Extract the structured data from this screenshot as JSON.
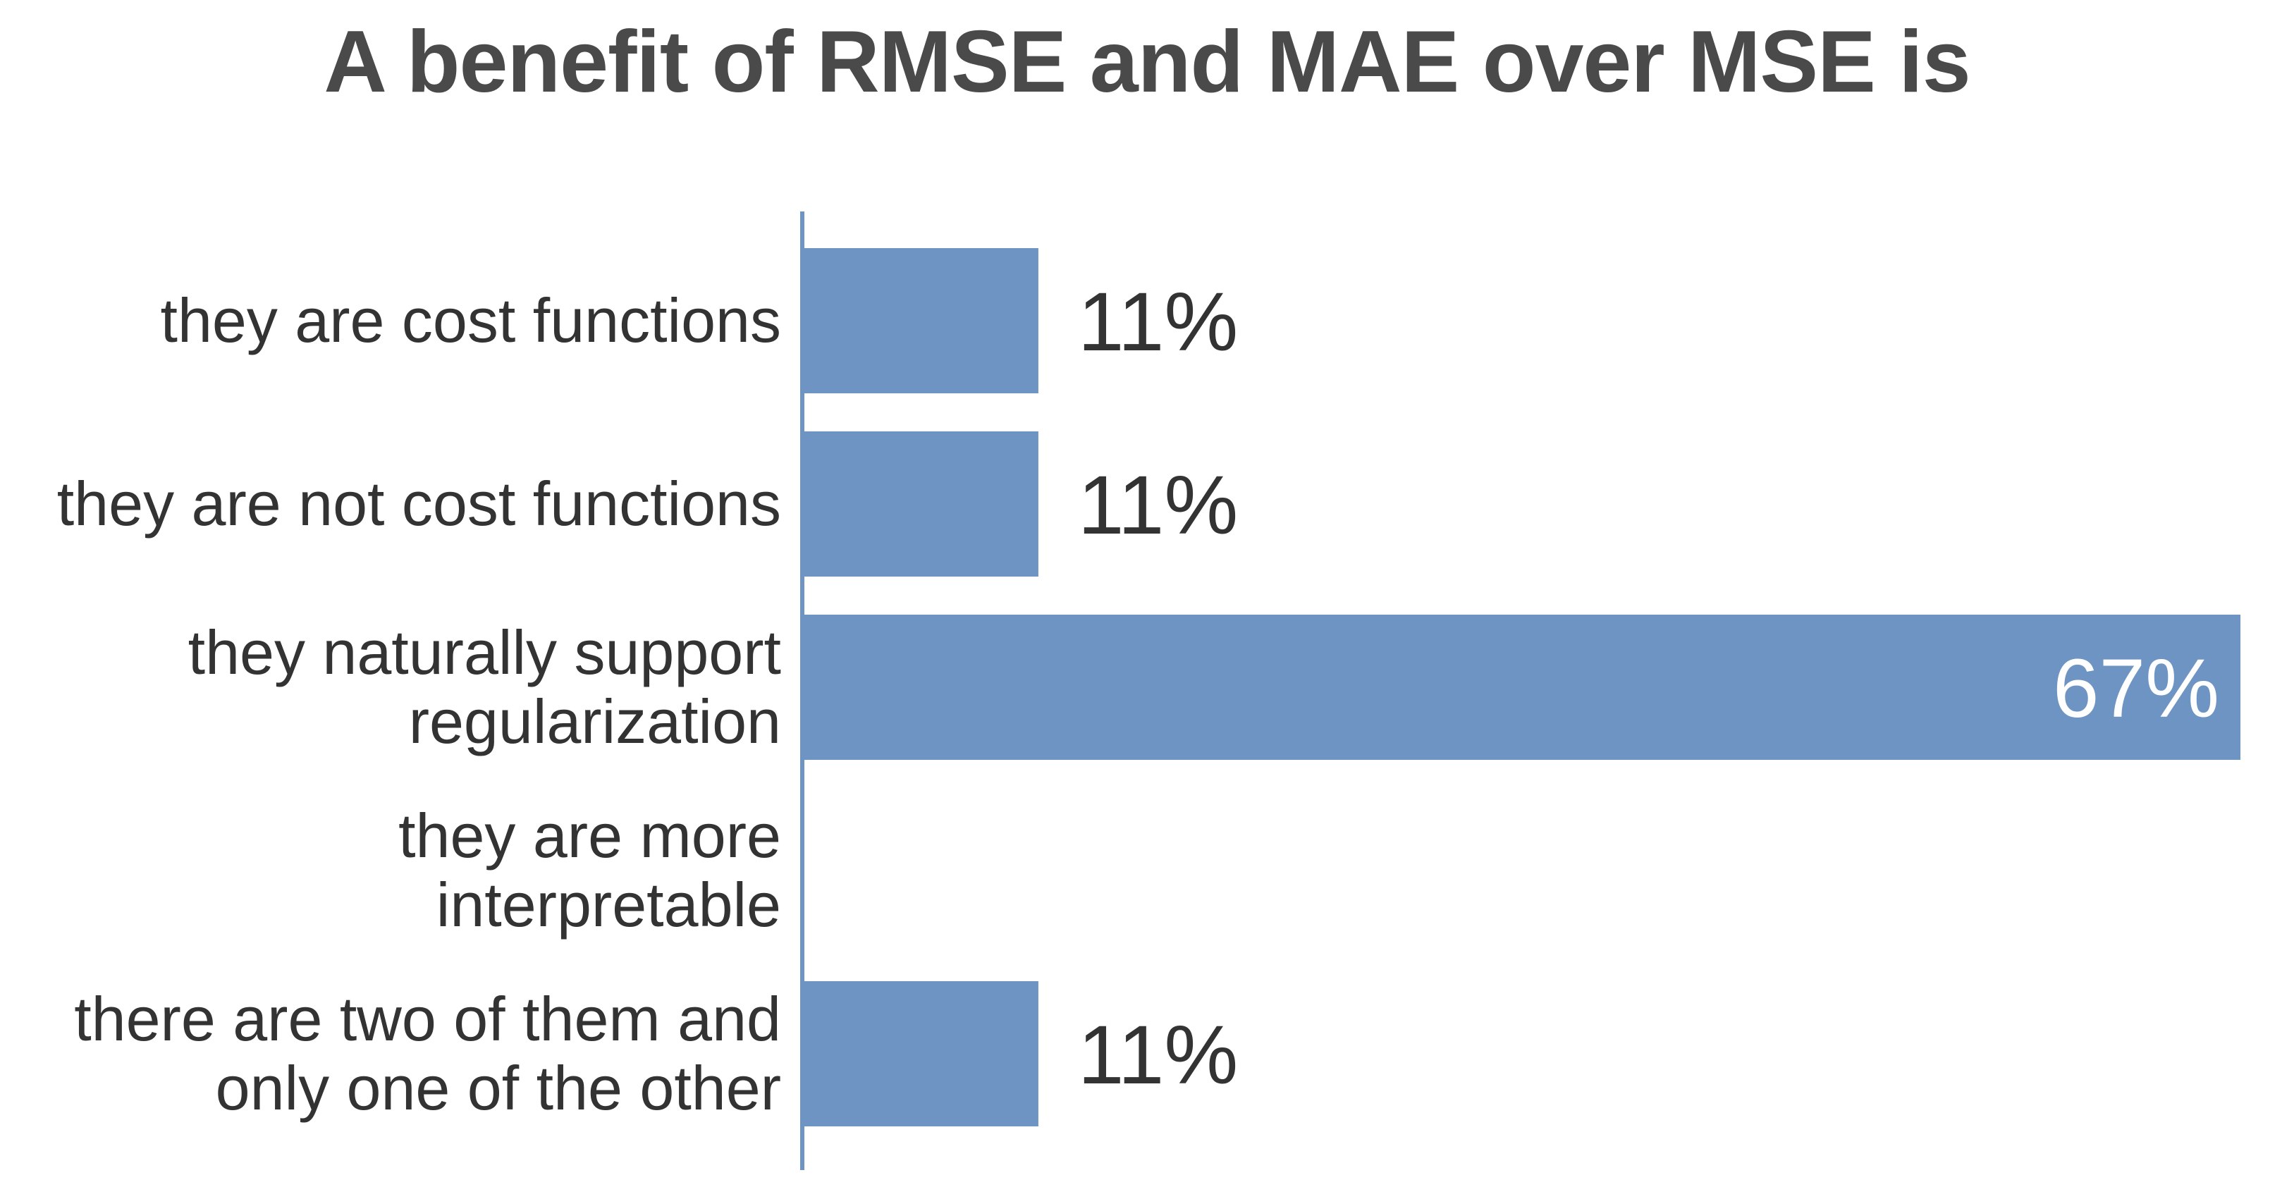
{
  "chart_data": {
    "type": "bar",
    "orientation": "horizontal",
    "title": "A benefit of RMSE and MAE over MSE is",
    "categories": [
      [
        "they are cost functions"
      ],
      [
        "they are not cost functions"
      ],
      [
        "they naturally support",
        "regularization"
      ],
      [
        "they are more",
        "interpretable"
      ],
      [
        "there are two of them and",
        "only one of the other"
      ]
    ],
    "values": [
      11,
      11,
      67,
      0,
      11
    ],
    "data_labels": [
      "11%",
      "11%",
      "67%",
      "",
      "11%"
    ],
    "unit": "%",
    "xlim": [
      0,
      67
    ],
    "grid": false,
    "legend": "none",
    "colors": {
      "bar": "#6d94c2",
      "axis": "#6d94c2",
      "label_outside": "#333333",
      "label_inside": "#ffffff",
      "title": "#4a4a4a"
    }
  }
}
